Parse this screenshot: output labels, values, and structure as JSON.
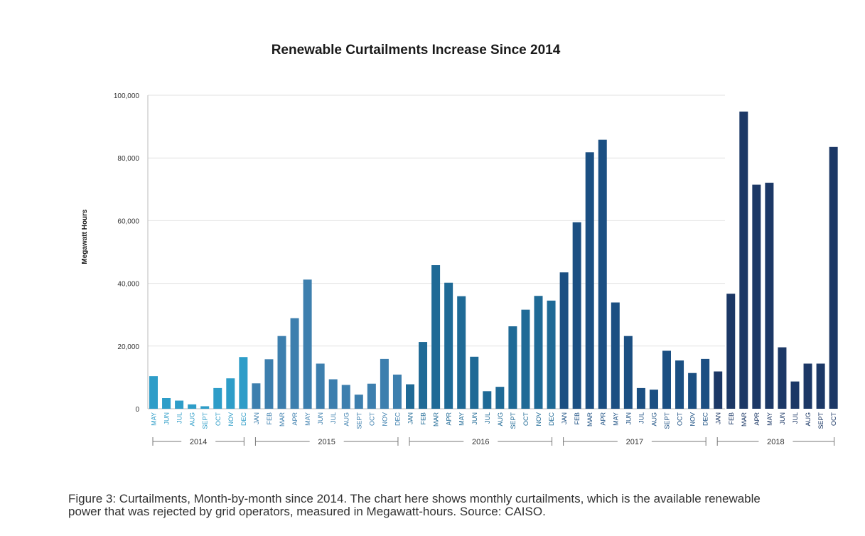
{
  "chart_data": {
    "type": "bar",
    "title": "Renewable Curtailments Increase Since 2014",
    "ylabel": "Megawatt Hours",
    "xlabel": "",
    "ylim": [
      0,
      100000
    ],
    "yticks": [
      0,
      20000,
      40000,
      60000,
      80000,
      100000
    ],
    "ytick_labels": [
      "0",
      "20,000",
      "40,000",
      "60,000",
      "80,000",
      "100,000"
    ],
    "grid": true,
    "categories": [
      "MAY",
      "JUN",
      "JUL",
      "AUG",
      "SEPT",
      "OCT",
      "NOV",
      "DEC",
      "JAN",
      "FEB",
      "MAR",
      "APR",
      "MAY",
      "JUN",
      "JUL",
      "AUG",
      "SEPT",
      "OCT",
      "NOV",
      "DEC",
      "JAN",
      "FEB",
      "MAR",
      "APR",
      "MAY",
      "JUN",
      "JUL",
      "AUG",
      "SEPT",
      "OCT",
      "NOV",
      "DEC",
      "JAN",
      "FEB",
      "MAR",
      "APR",
      "MAY",
      "JUN",
      "JUL",
      "AUG",
      "SEPT",
      "OCT",
      "NOV",
      "DEC",
      "JAN",
      "FEB",
      "MAR",
      "APR",
      "MAY",
      "JUN",
      "JUL",
      "AUG",
      "SEPT",
      "OCT"
    ],
    "values": [
      10400,
      3400,
      2600,
      1400,
      800,
      6600,
      9700,
      16500,
      8100,
      15800,
      23200,
      28900,
      41200,
      14400,
      9400,
      7600,
      4500,
      8000,
      15900,
      10900,
      7800,
      21300,
      45800,
      40200,
      35900,
      16600,
      5600,
      7000,
      26300,
      31600,
      36000,
      34500,
      43500,
      59500,
      81800,
      85800,
      33900,
      23200,
      6600,
      6100,
      18500,
      15400,
      11400,
      15900,
      11900,
      36700,
      94800,
      71500,
      72100,
      19600,
      8700,
      14400,
      14400,
      83500
    ],
    "years": [
      {
        "label": "2014",
        "start": 0,
        "end": 7,
        "color": "#2e9dc8"
      },
      {
        "label": "2015",
        "start": 8,
        "end": 19,
        "color": "#3d7fae"
      },
      {
        "label": "2016",
        "start": 20,
        "end": 31,
        "color": "#1f6a96"
      },
      {
        "label": "2017",
        "start": 32,
        "end": 43,
        "color": "#1b4f82"
      },
      {
        "label": "2018",
        "start": 44,
        "end": 53,
        "color": "#1c3866"
      }
    ]
  },
  "caption": "Figure 3: Curtailments, Month-by-month since 2014. The chart here shows monthly curtailments, which is the available renewable power that was rejected by grid operators, measured in Megawatt-hours. Source: CAISO."
}
